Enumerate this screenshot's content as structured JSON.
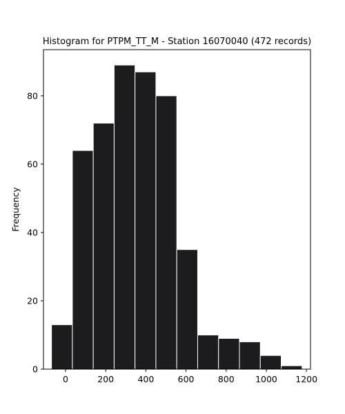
{
  "chart_data": {
    "type": "bar",
    "title": "Histogram for PTPM_TT_M - Station 16070040 (472 records)",
    "xlabel": "",
    "ylabel": "Frequency",
    "bin_edges": [
      -70,
      34,
      138,
      242,
      346,
      450,
      554,
      658,
      762,
      866,
      970,
      1074,
      1178
    ],
    "values": [
      13,
      64,
      72,
      89,
      87,
      80,
      35,
      10,
      9,
      8,
      4,
      1
    ],
    "xlim": [
      -110,
      1220
    ],
    "ylim": [
      0,
      93.5
    ],
    "xticks": [
      0,
      200,
      400,
      600,
      800,
      1000,
      1200
    ],
    "yticks": [
      0,
      20,
      40,
      60,
      80
    ],
    "bar_color": "#1c1c1f",
    "edge_color": "#ffffff",
    "grid": false,
    "legend": "none"
  }
}
